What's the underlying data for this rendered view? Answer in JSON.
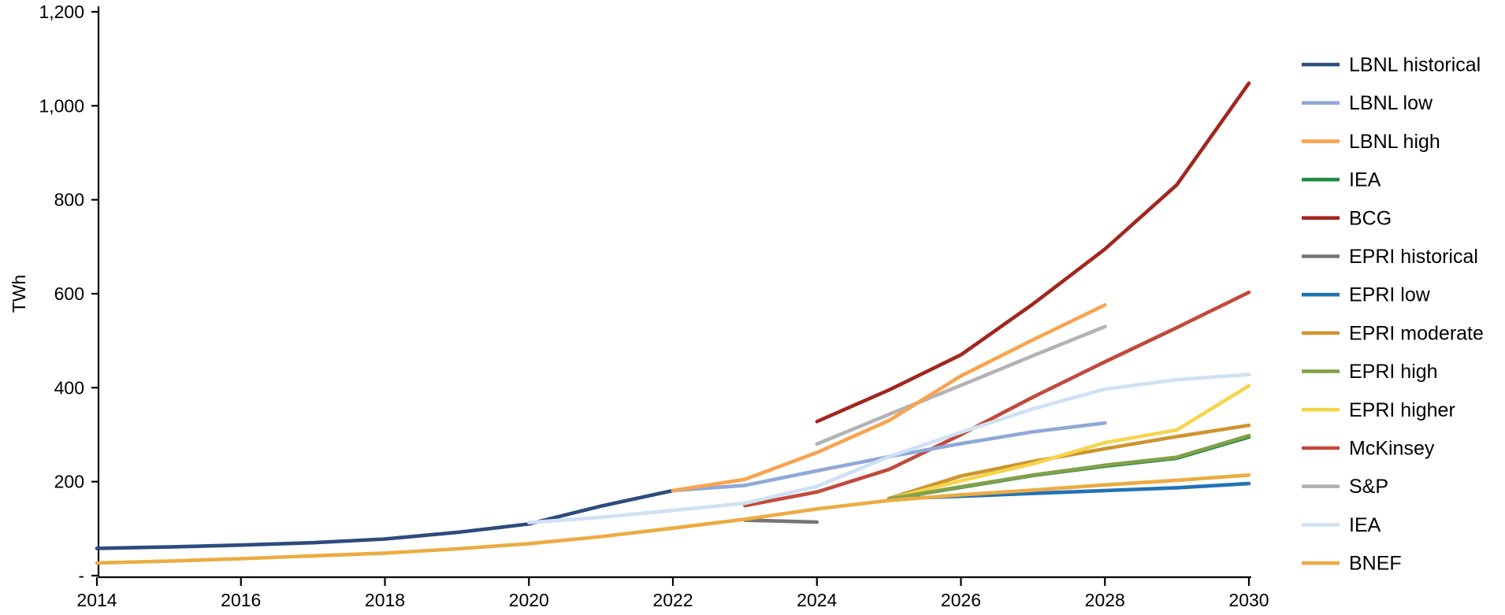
{
  "chart_data": {
    "type": "line",
    "title": "",
    "ylabel": "TWh",
    "xlabel": "",
    "xlim": [
      2014,
      2030
    ],
    "ylim": [
      0,
      1200
    ],
    "grid": false,
    "legend_position": "right",
    "axis_color": "#000000",
    "x_ticks": [
      {
        "value": 2014,
        "label": "2014"
      },
      {
        "value": 2016,
        "label": "2016"
      },
      {
        "value": 2018,
        "label": "2018"
      },
      {
        "value": 2020,
        "label": "2020"
      },
      {
        "value": 2022,
        "label": "2022"
      },
      {
        "value": 2024,
        "label": "2024"
      },
      {
        "value": 2026,
        "label": "2026"
      },
      {
        "value": 2028,
        "label": "2028"
      },
      {
        "value": 2030,
        "label": "2030"
      }
    ],
    "y_ticks": [
      {
        "value": 0,
        "label": "-"
      },
      {
        "value": 200,
        "label": "200"
      },
      {
        "value": 400,
        "label": "400"
      },
      {
        "value": 600,
        "label": "600"
      },
      {
        "value": 800,
        "label": "800"
      },
      {
        "value": 1000,
        "label": "1,000"
      },
      {
        "value": 1200,
        "label": "1,200"
      }
    ],
    "series": [
      {
        "id": "lbnl-historical",
        "label": "LBNL historical",
        "color": "#2C4C7C",
        "points": [
          [
            2014,
            58
          ],
          [
            2015,
            61
          ],
          [
            2016,
            65
          ],
          [
            2017,
            70
          ],
          [
            2018,
            78
          ],
          [
            2019,
            92
          ],
          [
            2020,
            110
          ],
          [
            2021,
            148
          ],
          [
            2022,
            181
          ]
        ]
      },
      {
        "id": "lbnl-low",
        "label": "LBNL low",
        "color": "#8FA8D8",
        "points": [
          [
            2022,
            181
          ],
          [
            2023,
            192
          ],
          [
            2024,
            223
          ],
          [
            2025,
            253
          ],
          [
            2026,
            281
          ],
          [
            2027,
            306
          ],
          [
            2028,
            325
          ]
        ]
      },
      {
        "id": "lbnl-high",
        "label": "LBNL high",
        "color": "#F9A34F",
        "points": [
          [
            2022,
            181
          ],
          [
            2023,
            205
          ],
          [
            2024,
            262
          ],
          [
            2025,
            330
          ],
          [
            2026,
            425
          ],
          [
            2027,
            502
          ],
          [
            2028,
            576
          ]
        ]
      },
      {
        "id": "iea-green",
        "label": "IEA",
        "color": "#1F8B43",
        "points": [
          [
            2025,
            163
          ],
          [
            2026,
            188
          ],
          [
            2027,
            213
          ],
          [
            2028,
            233
          ],
          [
            2029,
            250
          ],
          [
            2030,
            295
          ]
        ]
      },
      {
        "id": "bcg",
        "label": "BCG",
        "color": "#A2261F",
        "points": [
          [
            2024,
            328
          ],
          [
            2025,
            395
          ],
          [
            2026,
            470
          ],
          [
            2027,
            578
          ],
          [
            2028,
            695
          ],
          [
            2029,
            832
          ],
          [
            2030,
            1048
          ]
        ]
      },
      {
        "id": "epri-historical",
        "label": "EPRI historical",
        "color": "#757575",
        "points": [
          [
            2023,
            118
          ],
          [
            2024,
            114
          ]
        ]
      },
      {
        "id": "epri-low",
        "label": "EPRI low",
        "color": "#2272B5",
        "points": [
          [
            2025,
            163
          ],
          [
            2026,
            169
          ],
          [
            2027,
            175
          ],
          [
            2028,
            181
          ],
          [
            2029,
            187
          ],
          [
            2030,
            196
          ]
        ]
      },
      {
        "id": "epri-moderate",
        "label": "EPRI moderate",
        "color": "#CE9430",
        "points": [
          [
            2025,
            164
          ],
          [
            2026,
            212
          ],
          [
            2027,
            243
          ],
          [
            2028,
            270
          ],
          [
            2029,
            296
          ],
          [
            2030,
            320
          ]
        ]
      },
      {
        "id": "epri-high",
        "label": "EPRI high",
        "color": "#84A04A",
        "points": [
          [
            2025,
            163
          ],
          [
            2026,
            189
          ],
          [
            2027,
            214
          ],
          [
            2028,
            235
          ],
          [
            2029,
            252
          ],
          [
            2030,
            298
          ]
        ]
      },
      {
        "id": "epri-higher",
        "label": "EPRI higher",
        "color": "#F6D44C",
        "points": [
          [
            2025,
            163
          ],
          [
            2026,
            202
          ],
          [
            2027,
            238
          ],
          [
            2028,
            283
          ],
          [
            2029,
            310
          ],
          [
            2030,
            404
          ]
        ]
      },
      {
        "id": "mckinsey",
        "label": "McKinsey",
        "color": "#C14A3D",
        "points": [
          [
            2023,
            149
          ],
          [
            2024,
            178
          ],
          [
            2025,
            226
          ],
          [
            2026,
            300
          ],
          [
            2027,
            380
          ],
          [
            2028,
            455
          ],
          [
            2029,
            528
          ],
          [
            2030,
            603
          ]
        ]
      },
      {
        "id": "sp",
        "label": "S&P",
        "color": "#B3B3B3",
        "points": [
          [
            2024,
            280
          ],
          [
            2025,
            343
          ],
          [
            2026,
            405
          ],
          [
            2027,
            468
          ],
          [
            2028,
            530
          ]
        ]
      },
      {
        "id": "iea-blue",
        "label": "IEA",
        "color": "#CFE0F4",
        "points": [
          [
            2020,
            113
          ],
          [
            2021,
            124
          ],
          [
            2022,
            139
          ],
          [
            2023,
            154
          ],
          [
            2024,
            190
          ],
          [
            2025,
            253
          ],
          [
            2026,
            305
          ],
          [
            2027,
            355
          ],
          [
            2028,
            397
          ],
          [
            2029,
            417
          ],
          [
            2030,
            428
          ]
        ]
      },
      {
        "id": "bnef",
        "label": "BNEF",
        "color": "#EBAC42",
        "points": [
          [
            2014,
            27
          ],
          [
            2015,
            31
          ],
          [
            2016,
            36
          ],
          [
            2017,
            42
          ],
          [
            2018,
            48
          ],
          [
            2019,
            57
          ],
          [
            2020,
            68
          ],
          [
            2021,
            83
          ],
          [
            2022,
            101
          ],
          [
            2023,
            120
          ],
          [
            2024,
            142
          ],
          [
            2025,
            160
          ],
          [
            2026,
            172
          ],
          [
            2027,
            182
          ],
          [
            2028,
            193
          ],
          [
            2029,
            203
          ],
          [
            2030,
            214
          ]
        ]
      }
    ],
    "draw_order": [
      "iea-green",
      "epri-historical",
      "sp",
      "mckinsey",
      "bcg",
      "lbnl-historical",
      "lbnl-low",
      "lbnl-high",
      "epri-low",
      "epri-moderate",
      "epri-higher",
      "epri-high",
      "iea-blue",
      "bnef"
    ]
  }
}
